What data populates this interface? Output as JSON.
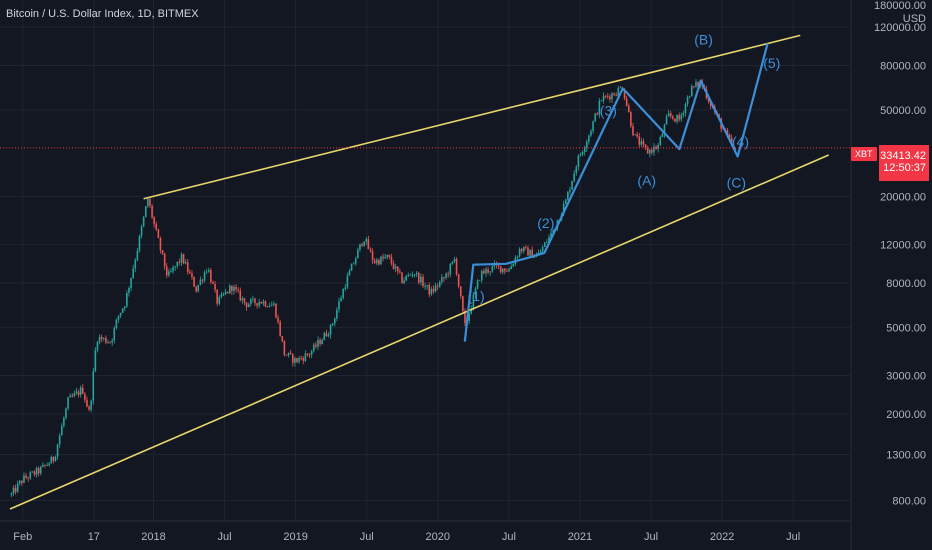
{
  "header": {
    "title": "Bitcoin / U.S. Dollar Index, 1D, BITMEX"
  },
  "currency": {
    "top": "180000.00",
    "unit": "USD"
  },
  "price_marker": {
    "symbol": "XBT",
    "price": "33413.42",
    "countdown": "12:50:37"
  },
  "colors": {
    "background": "#131722",
    "up": "#26a69a",
    "down": "#ef5350",
    "trendline": "#e8d66d",
    "wave": "#3b8fd9",
    "price": "#f23645"
  },
  "chart_data": {
    "type": "candlestick",
    "title": "Bitcoin / U.S. Dollar Index, 1D, BITMEX",
    "y_scale": "log",
    "y_tick_labels": [
      "120000.00",
      "80000.00",
      "50000.00",
      "20000.00",
      "12000.00",
      "8000.00",
      "5000.00",
      "3000.00",
      "2000.00",
      "1300.00",
      "800.00"
    ],
    "x_tick_labels": [
      "Feb",
      "17",
      "2018",
      "Jul",
      "2019",
      "Jul",
      "2020",
      "Jul",
      "2021",
      "Jul",
      "2022",
      "Jul"
    ],
    "x_ticks_time": [
      2017.08,
      2017.58,
      2018.0,
      2018.5,
      2019.0,
      2019.5,
      2020.0,
      2020.5,
      2021.0,
      2021.5,
      2022.0,
      2022.5
    ],
    "ylim": [
      650,
      160000
    ],
    "xlim": [
      2016.92,
      2022.9
    ],
    "current_price": 33413.42,
    "price_path": [
      [
        2017.0,
        850
      ],
      [
        2017.08,
        1000
      ],
      [
        2017.2,
        1100
      ],
      [
        2017.3,
        1250
      ],
      [
        2017.4,
        2300
      ],
      [
        2017.5,
        2600
      ],
      [
        2017.55,
        2000
      ],
      [
        2017.6,
        4500
      ],
      [
        2017.7,
        4300
      ],
      [
        2017.75,
        5600
      ],
      [
        2017.8,
        6500
      ],
      [
        2017.88,
        11000
      ],
      [
        2017.96,
        19500
      ],
      [
        2018.02,
        13500
      ],
      [
        2018.1,
        8500
      ],
      [
        2018.2,
        10500
      ],
      [
        2018.3,
        7500
      ],
      [
        2018.38,
        9500
      ],
      [
        2018.45,
        6500
      ],
      [
        2018.55,
        7700
      ],
      [
        2018.65,
        6400
      ],
      [
        2018.75,
        6600
      ],
      [
        2018.85,
        6300
      ],
      [
        2018.92,
        3800
      ],
      [
        2019.0,
        3500
      ],
      [
        2019.1,
        3800
      ],
      [
        2019.25,
        5000
      ],
      [
        2019.35,
        8000
      ],
      [
        2019.48,
        13000
      ],
      [
        2019.55,
        10000
      ],
      [
        2019.65,
        10500
      ],
      [
        2019.75,
        8200
      ],
      [
        2019.83,
        9000
      ],
      [
        2019.95,
        7200
      ],
      [
        2020.05,
        8500
      ],
      [
        2020.12,
        10300
      ],
      [
        2020.19,
        5000
      ],
      [
        2020.3,
        8800
      ],
      [
        2020.4,
        9500
      ],
      [
        2020.5,
        9200
      ],
      [
        2020.58,
        11500
      ],
      [
        2020.7,
        10600
      ],
      [
        2020.8,
        13500
      ],
      [
        2020.9,
        19000
      ],
      [
        2020.98,
        29000
      ],
      [
        2021.06,
        38000
      ],
      [
        2021.15,
        56000
      ],
      [
        2021.25,
        60000
      ],
      [
        2021.3,
        64000
      ],
      [
        2021.38,
        38000
      ],
      [
        2021.47,
        32000
      ],
      [
        2021.55,
        34000
      ],
      [
        2021.62,
        47000
      ],
      [
        2021.7,
        45000
      ],
      [
        2021.78,
        62000
      ],
      [
        2021.85,
        67000
      ],
      [
        2021.9,
        57000
      ],
      [
        2021.96,
        47000
      ],
      [
        2022.03,
        38000
      ],
      [
        2022.08,
        33413
      ]
    ],
    "trendlines": [
      {
        "name": "upper",
        "points": [
          [
            2017.93,
            19500
          ],
          [
            2022.55,
            110000
          ]
        ]
      },
      {
        "name": "lower",
        "points": [
          [
            2016.99,
            730
          ],
          [
            2022.75,
            31000
          ]
        ]
      }
    ],
    "wave_path": [
      [
        2020.19,
        4300
      ],
      [
        2020.25,
        9700
      ],
      [
        2020.48,
        9800
      ],
      [
        2020.65,
        10500
      ],
      [
        2020.75,
        11000
      ],
      [
        2021.3,
        62500
      ],
      [
        2021.32,
        61000
      ],
      [
        2021.7,
        33000
      ],
      [
        2021.85,
        68000
      ],
      [
        2022.11,
        30500
      ],
      [
        2022.32,
        101000
      ]
    ],
    "annotations": [
      {
        "text": "(1)",
        "x": 2020.27,
        "y": 6600
      },
      {
        "text": "(2)",
        "x": 2020.76,
        "y": 14300
      },
      {
        "text": "(3)",
        "x": 2021.2,
        "y": 47000
      },
      {
        "text": "(4)",
        "x": 2022.13,
        "y": 34000
      },
      {
        "text": "(5)",
        "x": 2022.35,
        "y": 78000
      },
      {
        "text": "(A)",
        "x": 2021.47,
        "y": 22500
      },
      {
        "text": "(B)",
        "x": 2021.87,
        "y": 100000
      },
      {
        "text": "(C)",
        "x": 2022.1,
        "y": 22000
      }
    ]
  }
}
